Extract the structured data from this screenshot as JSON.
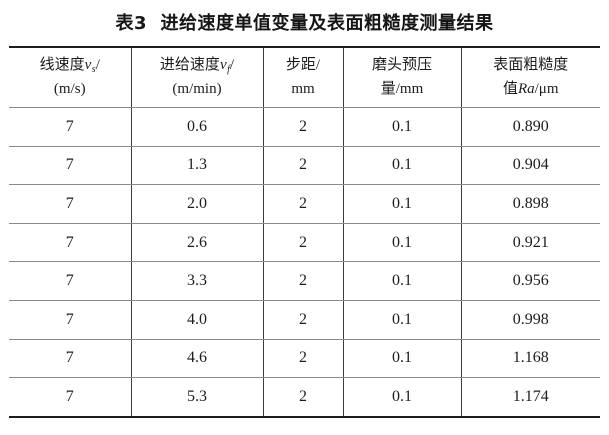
{
  "title": "表3  进给速度单值变量及表面粗糙度测量结果",
  "colors": {
    "background": "#ffffff",
    "text": "#1c1c1c",
    "outer_border": "#1d1d1d",
    "row_separator": "#8a8a8a",
    "column_separator": "#3b3b3b"
  },
  "table": {
    "header": {
      "col1": {
        "line1_text": "线速度",
        "line1_var": "v",
        "line1_sub": "s",
        "line1_slash": "/",
        "line2": "(m/s)"
      },
      "col2": {
        "line1_text": "进给速度",
        "line1_var": "v",
        "line1_sub": "f",
        "line1_slash": "/",
        "line2": "(m/min)"
      },
      "col3": {
        "line1": "步距/",
        "line2": "mm"
      },
      "col4": {
        "line1": "磨头预压",
        "line2": "量/mm"
      },
      "col5": {
        "line1": "表面粗糙度",
        "line2_pre": "值",
        "line2_var": "Ra",
        "line2_post": "/μm"
      }
    },
    "rows": [
      [
        "7",
        "0.6",
        "2",
        "0.1",
        "0.890"
      ],
      [
        "7",
        "1.3",
        "2",
        "0.1",
        "0.904"
      ],
      [
        "7",
        "2.0",
        "2",
        "0.1",
        "0.898"
      ],
      [
        "7",
        "2.6",
        "2",
        "0.1",
        "0.921"
      ],
      [
        "7",
        "3.3",
        "2",
        "0.1",
        "0.956"
      ],
      [
        "7",
        "4.0",
        "2",
        "0.1",
        "0.998"
      ],
      [
        "7",
        "4.6",
        "2",
        "0.1",
        "1.168"
      ],
      [
        "7",
        "5.3",
        "2",
        "0.1",
        "1.174"
      ]
    ]
  }
}
